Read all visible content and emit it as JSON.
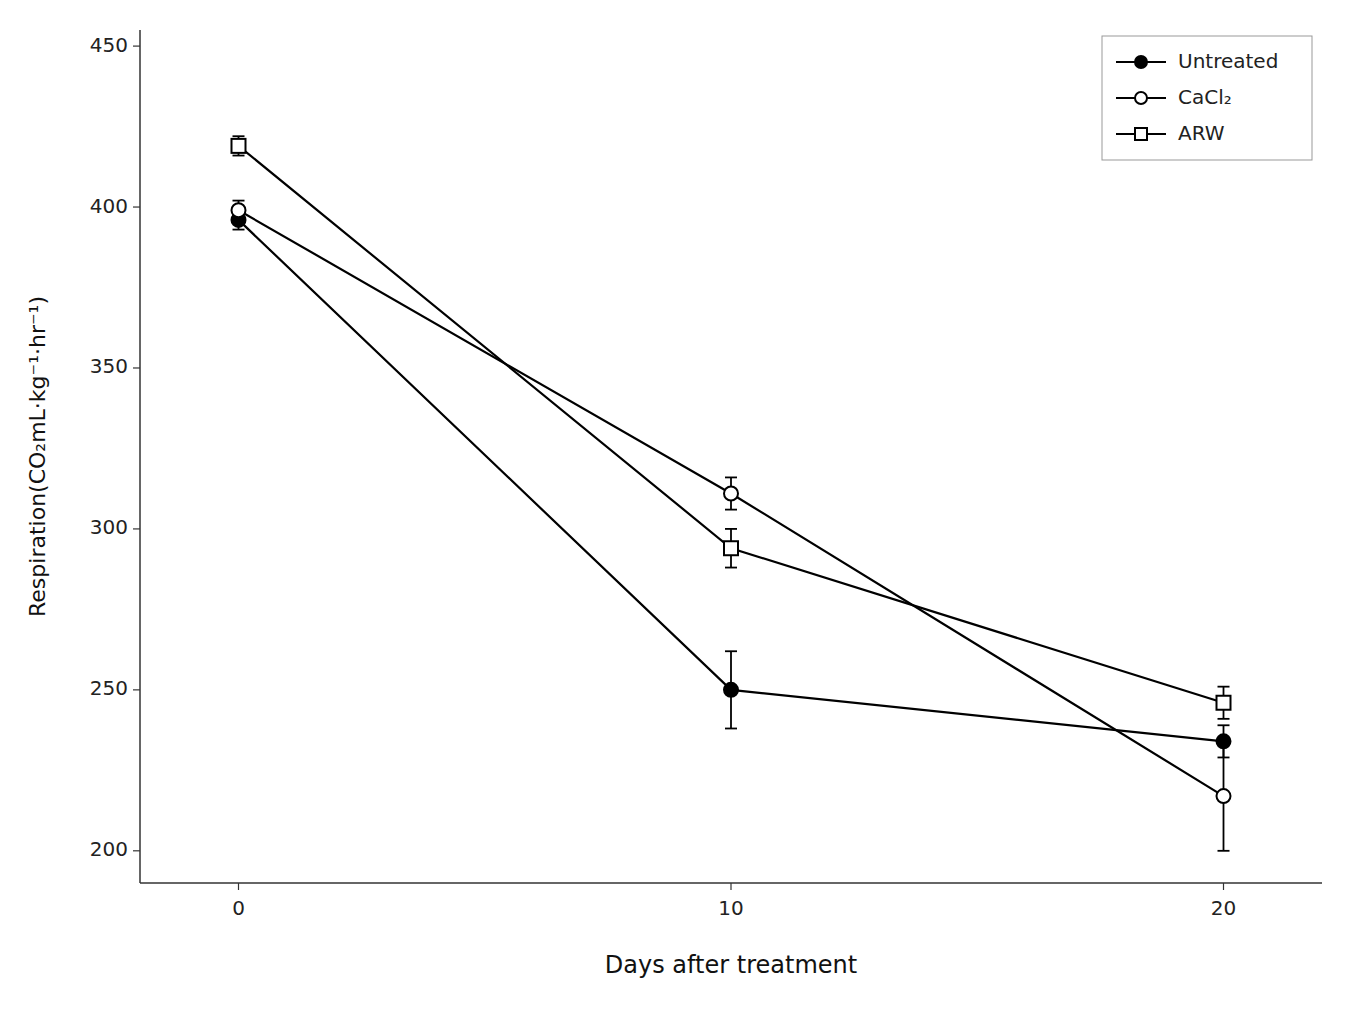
{
  "chart_data": {
    "type": "line",
    "x": [
      0,
      10,
      20
    ],
    "xlabel": "Days after treatment",
    "ylabel": "Respiration(CO₂mL·kg⁻¹·hr⁻¹)",
    "xlim": [
      -2,
      22
    ],
    "xticks": [
      0,
      10,
      20
    ],
    "ylim": [
      190,
      455
    ],
    "yticks": [
      200,
      250,
      300,
      350,
      400,
      450
    ],
    "grid": false,
    "legend": "upper right",
    "series": [
      {
        "name": "Untreated",
        "color": "#000000",
        "marker": "filled-circle",
        "values": [
          396,
          250,
          234
        ],
        "errors": [
          3,
          12,
          5
        ]
      },
      {
        "name": "CaCl₂",
        "color": "#000000",
        "marker": "open-circle",
        "values": [
          399,
          311,
          217
        ],
        "errors": [
          3,
          5,
          17
        ]
      },
      {
        "name": "ARW",
        "color": "#000000",
        "marker": "open-square",
        "values": [
          419,
          294,
          246
        ],
        "errors": [
          3,
          6,
          5
        ]
      }
    ]
  }
}
